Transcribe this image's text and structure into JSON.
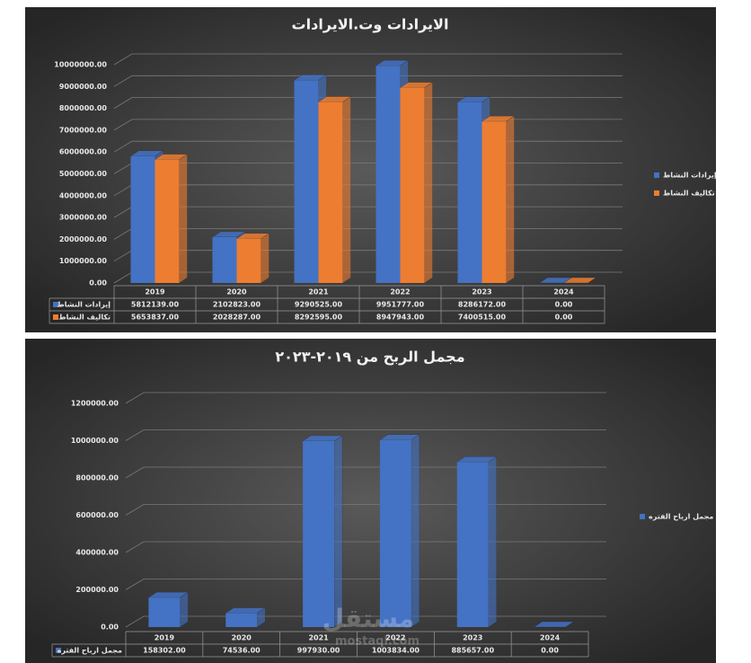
{
  "chart_data": [
    {
      "type": "bar",
      "title": "الايرادات وت.الايرادات",
      "categories": [
        "2019",
        "2020",
        "2021",
        "2022",
        "2023",
        "2024"
      ],
      "series": [
        {
          "name": "إيرادات النشاط",
          "color": "#4472c4",
          "values": [
            5812139,
            2102823,
            9290525,
            9951777,
            8286172,
            0
          ],
          "value_labels": [
            "5812139.00",
            "2102823.00",
            "9290525.00",
            "9951777.00",
            "8286172.00",
            "0.00"
          ]
        },
        {
          "name": "تكاليف النشاط",
          "color": "#ed7d31",
          "values": [
            5653837,
            2028287,
            8292595,
            8947943,
            7400515,
            0
          ],
          "value_labels": [
            "5653837.00",
            "2028287.00",
            "8292595.00",
            "8947943.00",
            "7400515.00",
            "0.00"
          ]
        }
      ],
      "ylim": [
        0,
        10000000
      ],
      "yticks": [
        {
          "value": 0,
          "label": "0.00"
        },
        {
          "value": 1000000,
          "label": "1000000.00"
        },
        {
          "value": 2000000,
          "label": "2000000.00"
        },
        {
          "value": 3000000,
          "label": "3000000.00"
        },
        {
          "value": 4000000,
          "label": "4000000.00"
        },
        {
          "value": 5000000,
          "label": "5000000.00"
        },
        {
          "value": 6000000,
          "label": "6000000.00"
        },
        {
          "value": 7000000,
          "label": "7000000.00"
        },
        {
          "value": 8000000,
          "label": "8000000.00"
        },
        {
          "value": 9000000,
          "label": "9000000.00"
        },
        {
          "value": 10000000,
          "label": "10000000.00"
        }
      ],
      "grid": true,
      "legend": "right"
    },
    {
      "type": "bar",
      "title": "مجمل الربح من ٢٠١٩-٢٠٢٣",
      "categories": [
        "2019",
        "2020",
        "2021",
        "2022",
        "2023",
        "2024"
      ],
      "series": [
        {
          "name": "مجمل ارباح الفتره",
          "color": "#4472c4",
          "values": [
            158302,
            74536,
            997930,
            1003834,
            885657,
            0
          ],
          "value_labels": [
            "158302.00",
            "74536.00",
            "997930.00",
            "1003834.00",
            "885657.00",
            "0.00"
          ]
        }
      ],
      "ylim": [
        0,
        1200000
      ],
      "yticks": [
        {
          "value": 0,
          "label": "0.00"
        },
        {
          "value": 200000,
          "label": "200000.00"
        },
        {
          "value": 400000,
          "label": "400000.00"
        },
        {
          "value": 600000,
          "label": "600000.00"
        },
        {
          "value": 800000,
          "label": "800000.00"
        },
        {
          "value": 1000000,
          "label": "1000000.00"
        },
        {
          "value": 1200000,
          "label": "1200000.00"
        }
      ],
      "grid": true,
      "legend": "right"
    }
  ],
  "watermark": {
    "name": "مستقل",
    "site": "mostaql.com"
  }
}
